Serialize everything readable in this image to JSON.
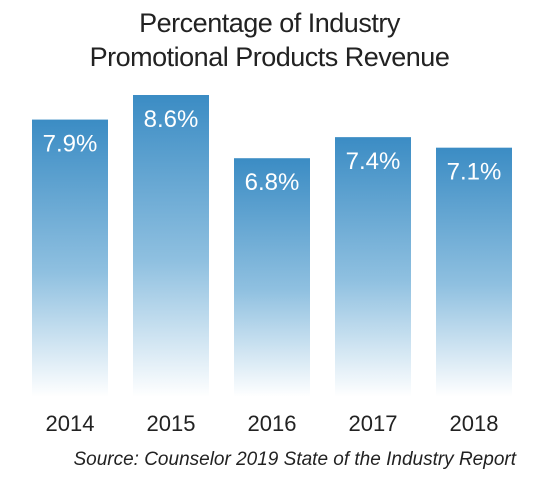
{
  "title_lines": [
    "Percentage of Industry",
    "Promotional Products Revenue"
  ],
  "source": "Source: Counselor 2019 State of the Industry Report",
  "colors": {
    "bar_top": "#3b8cc4",
    "bar_bottom": "#ffffff",
    "label_text": "#ffffff",
    "axis_text": "#222222"
  },
  "chart_data": {
    "type": "bar",
    "title": "Percentage of Industry Promotional Products Revenue",
    "categories": [
      "2014",
      "2015",
      "2016",
      "2017",
      "2018"
    ],
    "values": [
      7.9,
      8.6,
      6.8,
      7.4,
      7.1
    ],
    "data_labels": [
      "7.9%",
      "8.6%",
      "6.8%",
      "7.4%",
      "7.1%"
    ],
    "xlabel": "",
    "ylabel": "",
    "ylim": [
      0,
      8.6
    ],
    "grid": false,
    "legend": "none"
  }
}
